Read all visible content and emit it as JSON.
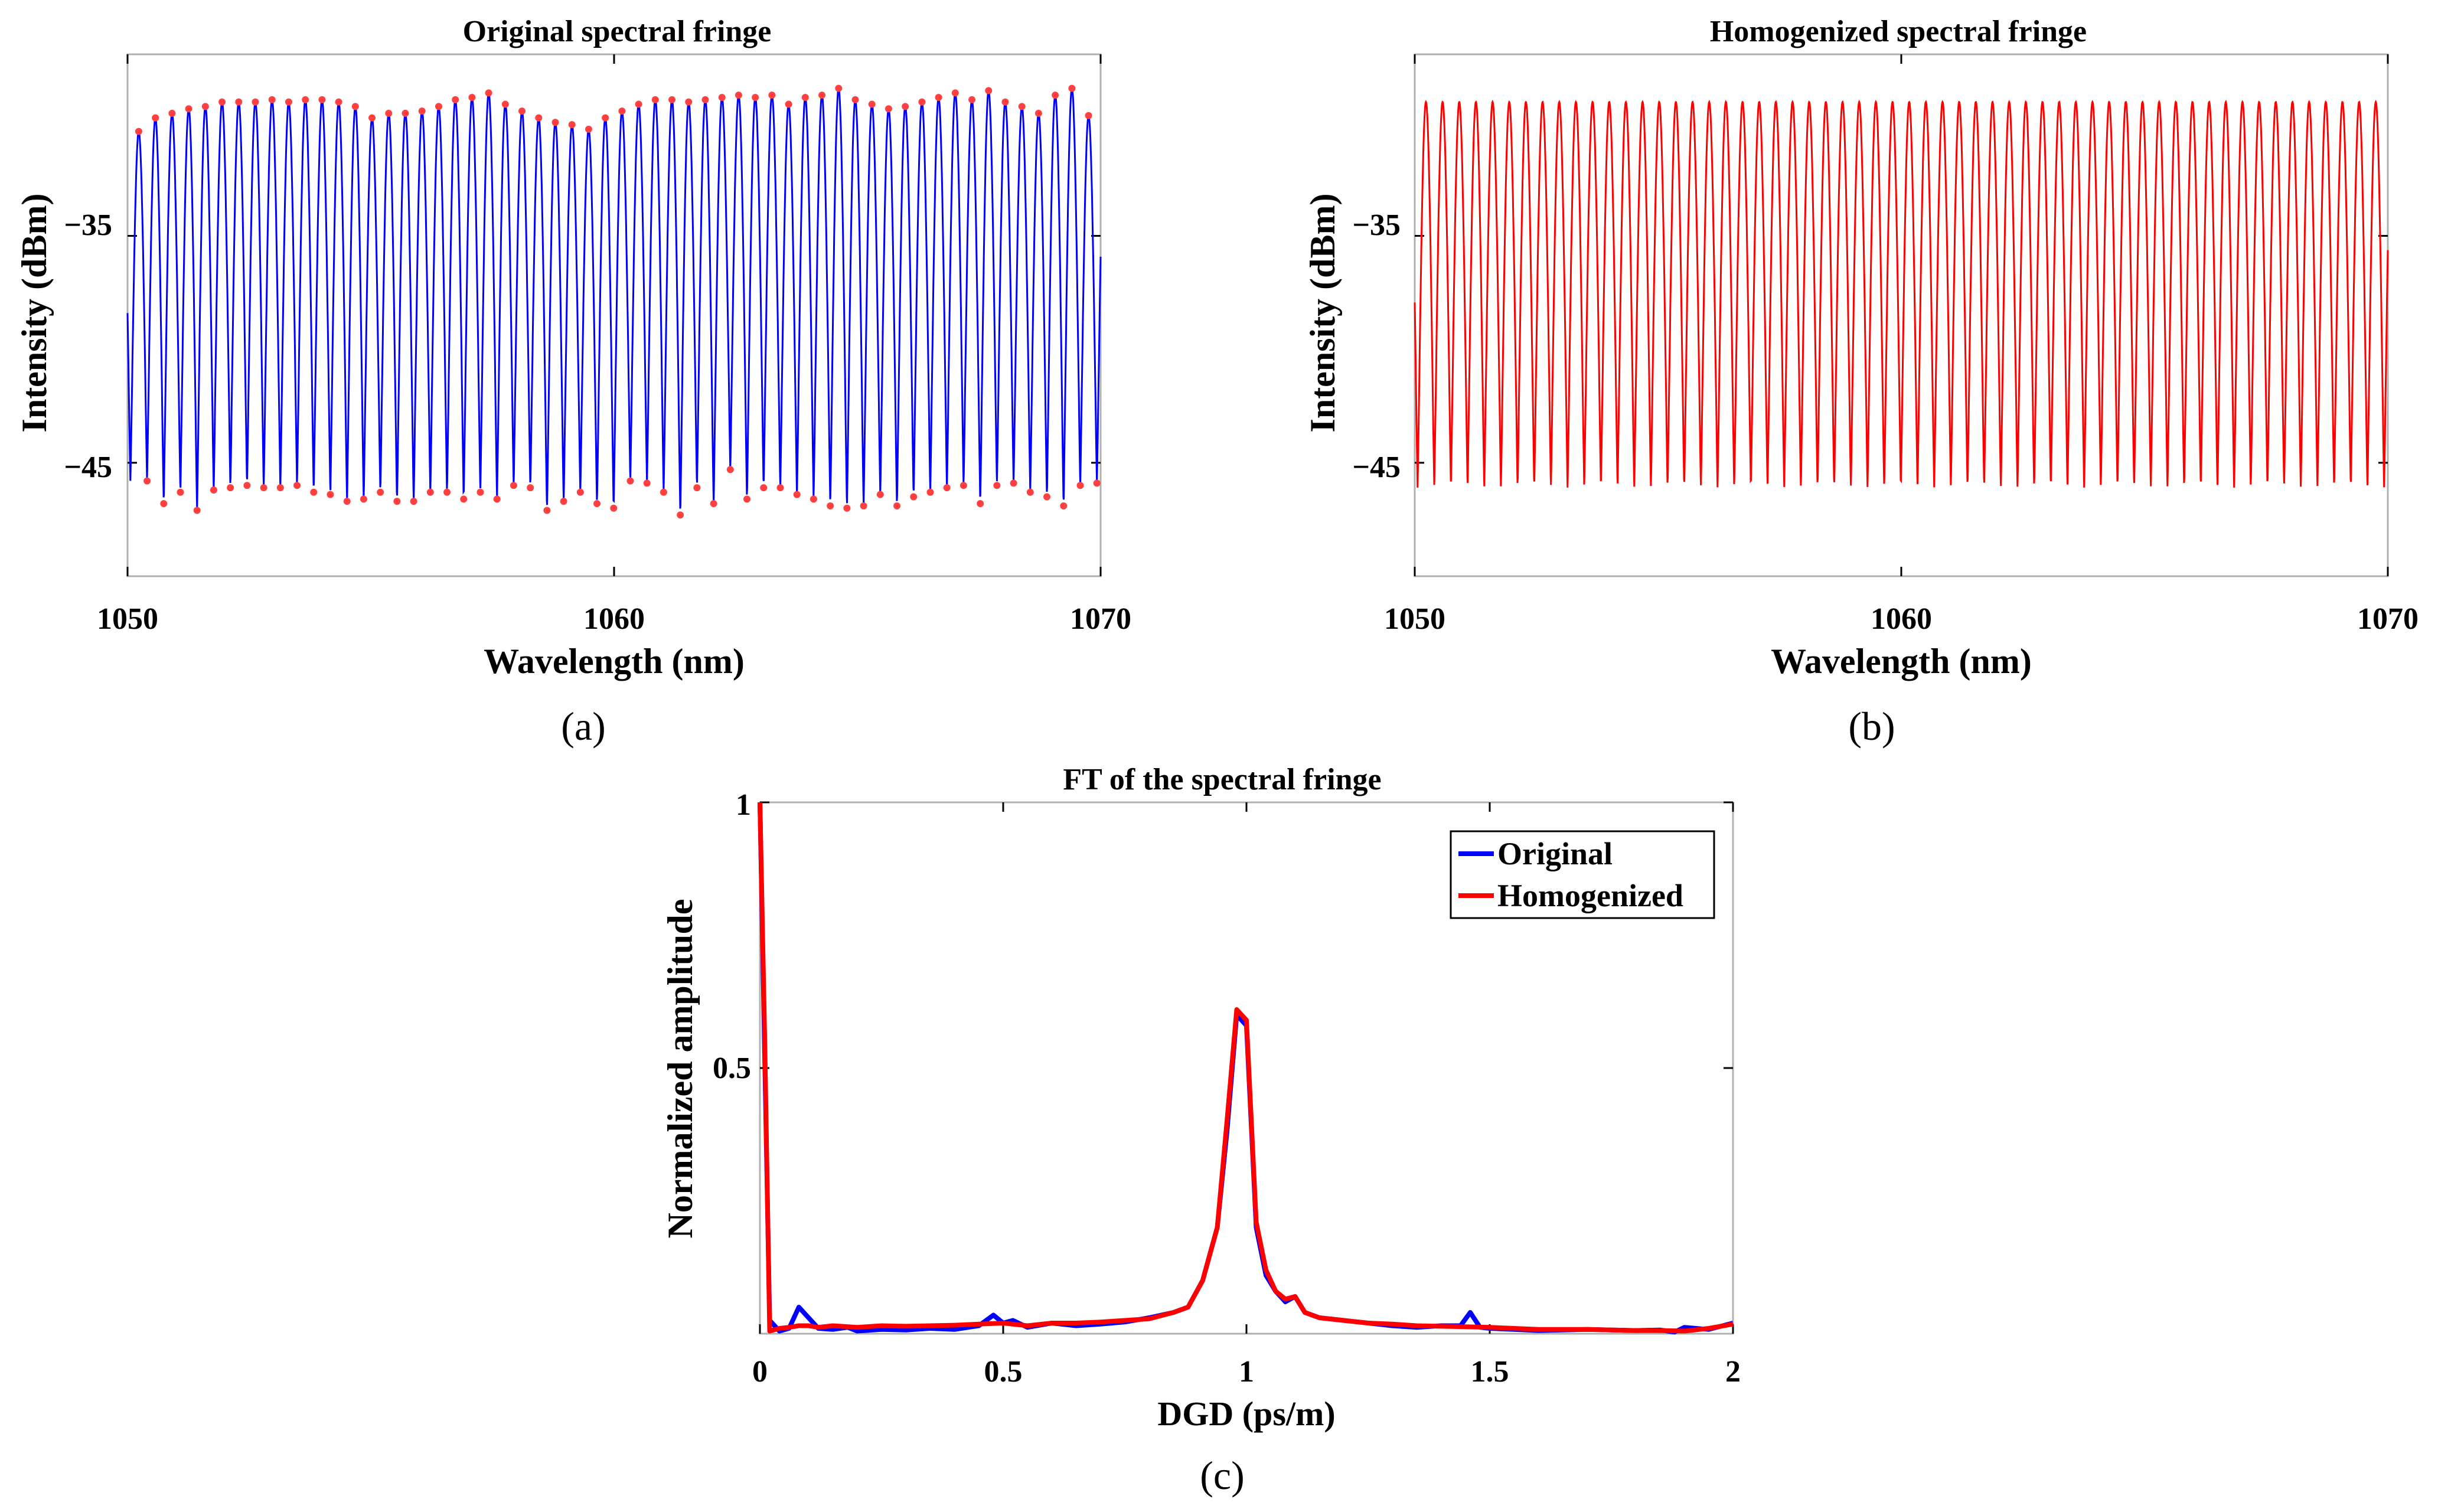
{
  "colors": {
    "original": "#0000ff",
    "homogenized": "#ff0000",
    "marker": "#ff4040",
    "axis": "#000000",
    "frame": "#b0b0b0"
  },
  "chart_data": [
    {
      "id": "a",
      "type": "line",
      "title": "Original spectral fringe",
      "xlabel": "Wavelength (nm)",
      "ylabel": "Intensity (dBm)",
      "caption": "(a)",
      "xlim": [
        1050,
        1070
      ],
      "ylim": [
        -50,
        -27
      ],
      "xticks": [
        1050,
        1060,
        1070
      ],
      "xtick_labels": [
        "1050",
        "1060",
        "1070"
      ],
      "yticks": [
        -35,
        -45
      ],
      "ytick_labels": [
        "−35",
        "−45"
      ],
      "fringe": {
        "start_nm": 1050.23,
        "period_nm": 0.3425,
        "cycles": 58,
        "peaks_dBm": [
          -30.4,
          -29.8,
          -29.6,
          -29.4,
          -29.3,
          -29.1,
          -29.1,
          -29.1,
          -29.0,
          -29.1,
          -29.0,
          -29.0,
          -29.1,
          -29.3,
          -29.8,
          -29.6,
          -29.6,
          -29.5,
          -29.3,
          -29.0,
          -28.9,
          -28.7,
          -29.2,
          -29.5,
          -29.8,
          -30.0,
          -30.1,
          -30.3,
          -29.8,
          -29.5,
          -29.2,
          -29.0,
          -29.0,
          -29.1,
          -29.0,
          -28.9,
          -28.8,
          -28.9,
          -28.8,
          -29.2,
          -28.9,
          -28.8,
          -28.5,
          -29.0,
          -29.2,
          -29.4,
          -29.3,
          -29.1,
          -28.9,
          -28.7,
          -29.0,
          -28.6,
          -29.1,
          -29.3,
          -29.6,
          -28.8,
          -28.5,
          -29.7
        ],
        "valleys_dBm": [
          -45.8,
          -46.8,
          -46.3,
          -47.1,
          -46.2,
          -46.1,
          -46.0,
          -46.1,
          -46.1,
          -46.0,
          -46.3,
          -46.4,
          -46.7,
          -46.6,
          -46.3,
          -46.7,
          -46.7,
          -46.3,
          -46.3,
          -46.6,
          -46.3,
          -46.6,
          -46.0,
          -46.1,
          -47.1,
          -46.7,
          -46.3,
          -46.8,
          -47.0,
          -45.8,
          -45.9,
          -46.3,
          -47.3,
          -46.1,
          -46.8,
          -45.3,
          -46.6,
          -46.1,
          -46.1,
          -46.4,
          -46.6,
          -46.9,
          -47.0,
          -46.9,
          -46.4,
          -46.9,
          -46.5,
          -46.3,
          -46.1,
          -46.0,
          -46.8,
          -46.0,
          -45.9,
          -46.3,
          -46.5,
          -46.9,
          -46.0,
          -45.9
        ]
      }
    },
    {
      "id": "b",
      "type": "line",
      "title": "Homogenized spectral fringe",
      "xlabel": "Wavelength (nm)",
      "ylabel": "Intensity (dBm)",
      "caption": "(b)",
      "xlim": [
        1050,
        1070
      ],
      "ylim": [
        -50,
        -27
      ],
      "xticks": [
        1050,
        1060,
        1070
      ],
      "xtick_labels": [
        "1050",
        "1060",
        "1070"
      ],
      "yticks": [
        -35,
        -45
      ],
      "ytick_labels": [
        "−35",
        "−45"
      ],
      "fringe": {
        "start_nm": 1050.23,
        "period_nm": 0.3425,
        "cycles": 58,
        "peak_dBm": -29.1,
        "valley_dBm": -46.1
      }
    },
    {
      "id": "c",
      "type": "line",
      "title": "FT of the spectral fringe",
      "xlabel": "DGD (ps/m)",
      "ylabel": "Normalized amplitude",
      "caption": "(c)",
      "xlim": [
        0,
        2
      ],
      "ylim": [
        0,
        1
      ],
      "xticks": [
        0,
        0.5,
        1,
        1.5,
        2
      ],
      "xtick_labels": [
        "0",
        "0.5",
        "1",
        "1.5",
        "2"
      ],
      "yticks": [
        0.5,
        1
      ],
      "ytick_labels": [
        "0.5",
        "1"
      ],
      "legend": [
        "Original",
        "Homogenized"
      ],
      "legend_position": "top-right",
      "series": [
        {
          "name": "Original",
          "x": [
            0,
            0.02,
            0.04,
            0.06,
            0.08,
            0.1,
            0.12,
            0.15,
            0.18,
            0.2,
            0.25,
            0.3,
            0.35,
            0.4,
            0.45,
            0.48,
            0.5,
            0.52,
            0.55,
            0.6,
            0.65,
            0.7,
            0.75,
            0.8,
            0.85,
            0.88,
            0.91,
            0.94,
            0.96,
            0.98,
            1.0,
            1.02,
            1.04,
            1.06,
            1.08,
            1.1,
            1.12,
            1.15,
            1.2,
            1.25,
            1.3,
            1.35,
            1.4,
            1.44,
            1.46,
            1.48,
            1.5,
            1.55,
            1.6,
            1.7,
            1.8,
            1.85,
            1.88,
            1.9,
            1.95,
            2.0
          ],
          "y": [
            1.0,
            0.025,
            0.005,
            0.01,
            0.05,
            0.03,
            0.01,
            0.008,
            0.012,
            0.005,
            0.008,
            0.007,
            0.01,
            0.008,
            0.015,
            0.035,
            0.02,
            0.025,
            0.012,
            0.02,
            0.015,
            0.018,
            0.022,
            0.03,
            0.04,
            0.05,
            0.1,
            0.2,
            0.38,
            0.6,
            0.58,
            0.2,
            0.11,
            0.08,
            0.06,
            0.07,
            0.04,
            0.03,
            0.025,
            0.02,
            0.015,
            0.012,
            0.015,
            0.015,
            0.04,
            0.012,
            0.01,
            0.008,
            0.006,
            0.008,
            0.006,
            0.007,
            0.003,
            0.012,
            0.008,
            0.02
          ]
        },
        {
          "name": "Homogenized",
          "x": [
            0,
            0.01,
            0.02,
            0.04,
            0.06,
            0.08,
            0.1,
            0.12,
            0.15,
            0.2,
            0.25,
            0.3,
            0.35,
            0.4,
            0.45,
            0.5,
            0.55,
            0.6,
            0.65,
            0.7,
            0.75,
            0.8,
            0.85,
            0.88,
            0.91,
            0.94,
            0.96,
            0.98,
            1.0,
            1.02,
            1.04,
            1.06,
            1.08,
            1.1,
            1.12,
            1.15,
            1.2,
            1.25,
            1.3,
            1.35,
            1.4,
            1.45,
            1.5,
            1.55,
            1.6,
            1.7,
            1.8,
            1.85,
            1.9,
            1.95,
            2.0
          ],
          "y": [
            1.0,
            0.55,
            0.005,
            0.01,
            0.012,
            0.015,
            0.015,
            0.012,
            0.015,
            0.012,
            0.015,
            0.014,
            0.015,
            0.016,
            0.018,
            0.02,
            0.015,
            0.02,
            0.02,
            0.022,
            0.025,
            0.028,
            0.04,
            0.05,
            0.1,
            0.2,
            0.4,
            0.61,
            0.59,
            0.21,
            0.12,
            0.08,
            0.065,
            0.07,
            0.04,
            0.03,
            0.025,
            0.02,
            0.018,
            0.015,
            0.014,
            0.013,
            0.012,
            0.01,
            0.008,
            0.008,
            0.006,
            0.006,
            0.005,
            0.01,
            0.018
          ]
        }
      ]
    }
  ]
}
